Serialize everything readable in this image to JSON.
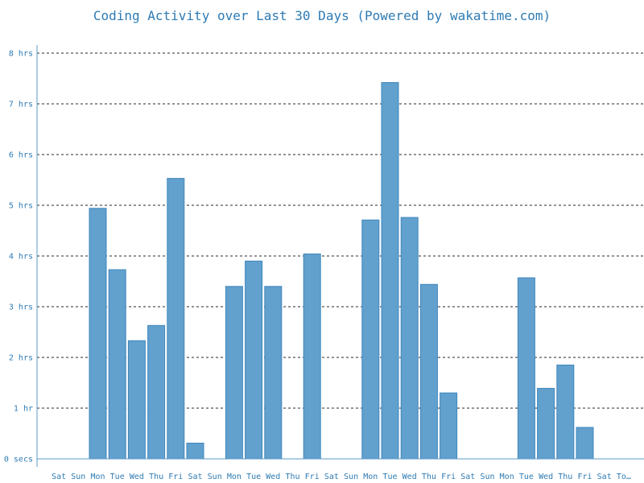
{
  "chart_data": {
    "type": "bar",
    "title": "Coding Activity over Last 30 Days (Powered by wakatime.com)",
    "xlabel": "",
    "ylabel": "",
    "ylim": [
      0,
      8
    ],
    "y_unit": "hours",
    "y_ticks": [
      {
        "value": 0,
        "label": "0 secs"
      },
      {
        "value": 1,
        "label": "1 hr"
      },
      {
        "value": 2,
        "label": "2 hrs"
      },
      {
        "value": 3,
        "label": "3 hrs"
      },
      {
        "value": 4,
        "label": "4 hrs"
      },
      {
        "value": 5,
        "label": "5 hrs"
      },
      {
        "value": 6,
        "label": "6 hrs"
      },
      {
        "value": 7,
        "label": "7 hrs"
      },
      {
        "value": 8,
        "label": "8 hrs"
      }
    ],
    "categories": [
      "Sat",
      "Sun",
      "Mon",
      "Tue",
      "Wed",
      "Thu",
      "Fri",
      "Sat",
      "Sun",
      "Mon",
      "Tue",
      "Wed",
      "Thu",
      "Fri",
      "Sat",
      "Sun",
      "Mon",
      "Tue",
      "Wed",
      "Thu",
      "Fri",
      "Sat",
      "Sun",
      "Mon",
      "Tue",
      "Wed",
      "Thu",
      "Fri",
      "Sat",
      "To…"
    ],
    "values": [
      0,
      0,
      4.94,
      3.73,
      2.33,
      2.63,
      5.53,
      0.31,
      0,
      3.4,
      3.9,
      3.4,
      0,
      4.04,
      0,
      0,
      4.71,
      7.42,
      4.76,
      3.44,
      1.3,
      0,
      0,
      0,
      3.57,
      1.39,
      1.85,
      0.62,
      0,
      0
    ],
    "grid": true,
    "legend": "none",
    "colors": {
      "bar": "#62a0cd",
      "bar_edge": "#3f87bd",
      "text": "#2e7bb4",
      "grid": "#555555",
      "axis": "#5b9bc8"
    }
  }
}
